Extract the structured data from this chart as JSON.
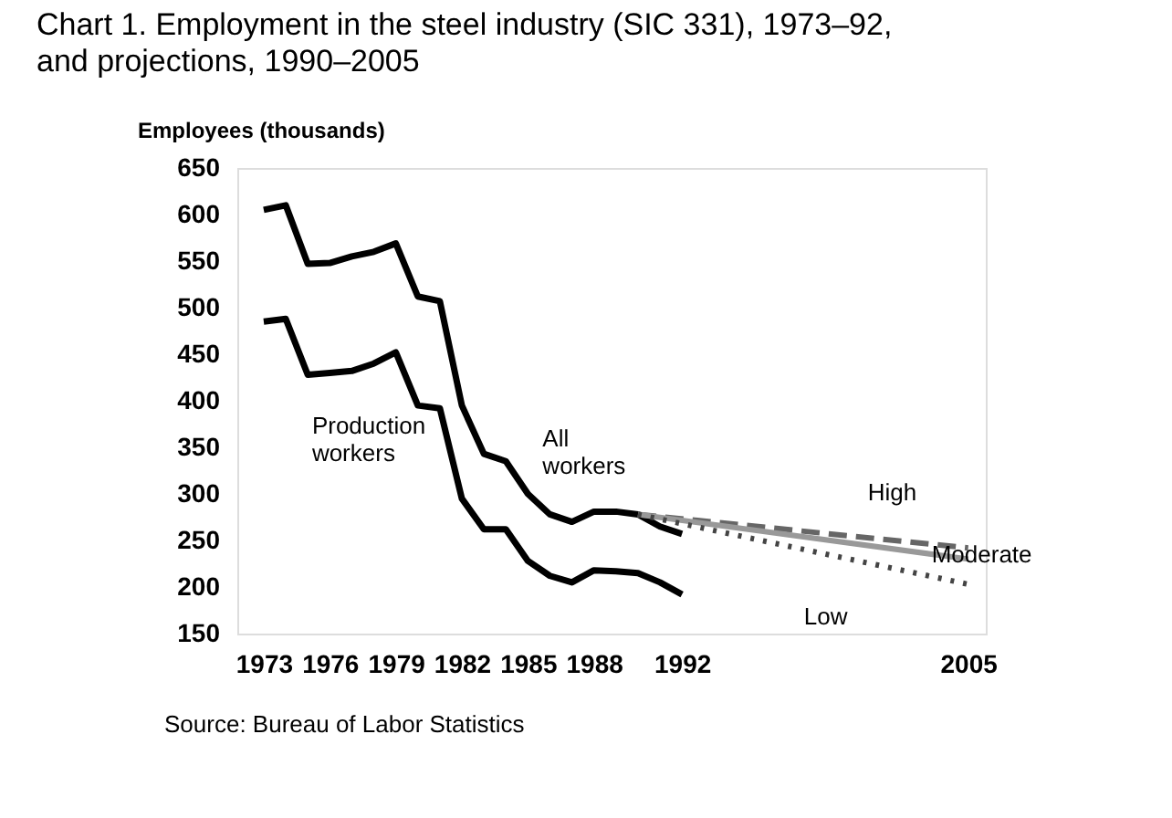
{
  "chart_data": {
    "type": "line",
    "title": "Chart 1.  Employment in the steel industry (SIC 331), 1973–92, and projections, 1990–2005",
    "ylabel": "Employees (thousands)",
    "annotations": [
      "Source:  Bureau of Labor Statistics"
    ],
    "xlim": [
      1971.8,
      2005.8
    ],
    "xticks": [
      1973,
      1976,
      1979,
      1982,
      1985,
      1988,
      1992,
      2005
    ],
    "ylim": [
      150,
      650
    ],
    "yticks": [
      150,
      200,
      250,
      300,
      350,
      400,
      450,
      500,
      550,
      600,
      650
    ],
    "grid": false,
    "legend": false,
    "marker": "none",
    "series": [
      {
        "name": "All workers",
        "color": "#000000",
        "line_style": "solid",
        "x": [
          1973,
          1974,
          1975,
          1976,
          1977,
          1978,
          1979,
          1980,
          1981,
          1982,
          1983,
          1984,
          1985,
          1986,
          1987,
          1988,
          1989,
          1990,
          1991,
          1992
        ],
        "values": [
          605,
          610,
          547,
          548,
          555,
          560,
          569,
          512,
          507,
          395,
          343,
          335,
          300,
          278,
          270,
          281,
          281,
          278,
          265,
          257
        ]
      },
      {
        "name": "Production workers",
        "color": "#000000",
        "line_style": "solid",
        "x": [
          1973,
          1974,
          1975,
          1976,
          1977,
          1978,
          1979,
          1980,
          1981,
          1982,
          1983,
          1984,
          1985,
          1986,
          1987,
          1988,
          1989,
          1990,
          1991,
          1992
        ],
        "values": [
          485,
          488,
          428,
          430,
          432,
          440,
          452,
          395,
          392,
          295,
          262,
          262,
          228,
          212,
          205,
          218,
          217,
          215,
          205,
          192
        ]
      },
      {
        "name": "High",
        "color": "#666666",
        "line_style": "dashed",
        "x": [
          1990,
          2005
        ],
        "values": [
          278,
          242
        ]
      },
      {
        "name": "Moderate",
        "color": "#999999",
        "line_style": "solid",
        "x": [
          1990,
          2005
        ],
        "values": [
          278,
          230
        ]
      },
      {
        "name": "Low",
        "color": "#444444",
        "line_style": "dotted",
        "x": [
          1990,
          2005
        ],
        "values": [
          278,
          203
        ]
      }
    ]
  }
}
